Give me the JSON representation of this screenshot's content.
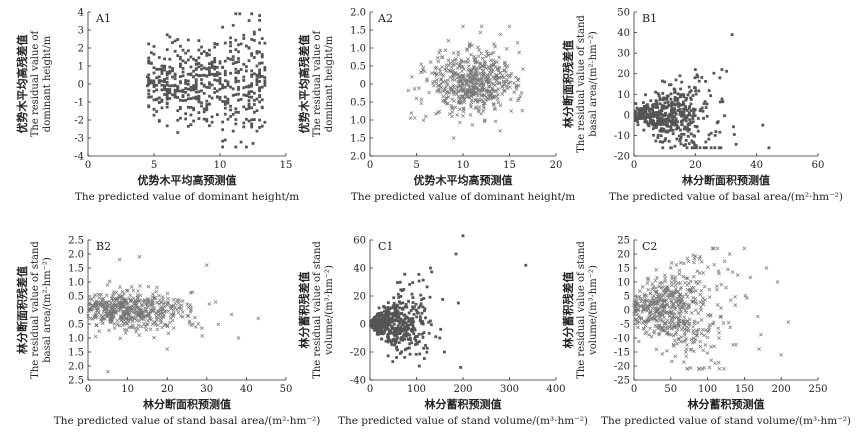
{
  "chart_data": [
    {
      "id": "A1",
      "type": "scatter",
      "panel_label": "A1",
      "marker": "square",
      "xlabel_zh": "优势木平均高预测值",
      "xlabel_en": "The predicted value of dominant height/m",
      "ylabel": [
        "优势木平均高残差值",
        "The residual value of",
        "dominant height/m"
      ],
      "xlim": [
        0,
        15
      ],
      "ylim": [
        -4,
        4
      ],
      "xticks": [
        0,
        5,
        10,
        15
      ],
      "yticks": [
        -4,
        -3,
        -2,
        -1,
        0,
        1,
        2,
        3,
        4
      ],
      "cloud": {
        "n": 520,
        "x_range": [
          4.5,
          13.5
        ],
        "x_columns": true,
        "y_sd": 0.9,
        "y_sd_growth": 0.08,
        "ref_x": 4.5,
        "y_clip": [
          -3.5,
          3.9
        ],
        "seed": 11
      },
      "points": [
        [
          4.5,
          0.4
        ],
        [
          4.5,
          -0.1
        ],
        [
          4.6,
          0.2
        ],
        [
          6,
          0.5
        ],
        [
          6,
          -0.3
        ],
        [
          6,
          0.1
        ],
        [
          7,
          2.1
        ],
        [
          7,
          -1.9
        ],
        [
          13,
          3.8
        ],
        [
          12,
          -3.5
        ],
        [
          11.5,
          3.9
        ],
        [
          12.5,
          -3.3
        ]
      ]
    },
    {
      "id": "A2",
      "type": "scatter",
      "panel_label": "A2",
      "marker": "cross",
      "xlabel_zh": "优势木平均高预测值",
      "xlabel_en": "The predicted value of dominant height/m",
      "ylabel": [
        "优势木平均高残差值",
        "The residual value of",
        "dominant height/m"
      ],
      "xlim": [
        0,
        20
      ],
      "ylim": [
        -2.0,
        2.0
      ],
      "xticks": [
        0,
        5,
        10,
        15,
        20
      ],
      "yticks": [
        -2.0,
        -1.5,
        -1.0,
        -0.5,
        0,
        0.5,
        1.0,
        1.5,
        2.0
      ],
      "ytick_labels": [
        "2.0",
        "1.5",
        "1.0",
        "0.5",
        "0",
        "0.5",
        "1.0",
        "1.5",
        "2.0"
      ],
      "cloud": {
        "n": 560,
        "x_mean": 11,
        "x_sd": 2.4,
        "x_range": [
          4.0,
          16.5
        ],
        "y_sd": 0.42,
        "y_sd_growth": 0.0,
        "ref_x": 0,
        "y_clip": [
          -1.6,
          1.65
        ],
        "seed": 23
      },
      "points": [
        [
          4.5,
          0.2
        ],
        [
          5,
          -0.4
        ],
        [
          6,
          -0.9
        ],
        [
          15,
          1.6
        ],
        [
          14,
          -1.3
        ],
        [
          10,
          1.6
        ],
        [
          12,
          1.6
        ],
        [
          9,
          -1.5
        ]
      ]
    },
    {
      "id": "B1",
      "type": "scatter",
      "panel_label": "B1",
      "marker": "square",
      "xlabel_zh": "林分断面积预测值",
      "xlabel_en": "The predicted value of basal area/(m²·hm⁻²)",
      "ylabel": [
        "林分断面积残差值",
        "The residual value of stand",
        "basal area/(m²·hm⁻²)"
      ],
      "xlim": [
        0,
        60
      ],
      "ylim": [
        -20,
        50
      ],
      "xticks": [
        0,
        20,
        40,
        60
      ],
      "yticks": [
        -20,
        -10,
        0,
        10,
        20,
        30,
        40,
        50
      ],
      "cloud": {
        "n": 480,
        "x_mean": 10,
        "x_sd": 8,
        "x_range": [
          0.3,
          45
        ],
        "y_sd": 1.5,
        "y_sd_growth": 0.45,
        "ref_x": 0,
        "y_clip": [
          -16,
          22
        ],
        "seed": 37
      },
      "points": [
        [
          32,
          39
        ],
        [
          20,
          22
        ],
        [
          28,
          18
        ],
        [
          42,
          -5
        ],
        [
          44,
          -16
        ],
        [
          18,
          -14
        ],
        [
          10,
          16
        ],
        [
          15,
          19
        ]
      ]
    },
    {
      "id": "B2",
      "type": "scatter",
      "panel_label": "B2",
      "marker": "cross",
      "xlabel_zh": "林分断面积预测值",
      "xlabel_en": "The predicted value of stand basal area/(m²·hm⁻²)",
      "ylabel": [
        "林分断面积残差值",
        "The residual value of stand",
        "basal area/(m²·hm⁻²)"
      ],
      "xlim": [
        0,
        50
      ],
      "ylim": [
        -2.5,
        2.5
      ],
      "xticks": [
        0,
        10,
        20,
        30,
        40,
        50
      ],
      "yticks": [
        -2.5,
        -2.0,
        -1.5,
        -1.0,
        -0.5,
        0,
        0.5,
        1.0,
        1.5,
        2.0,
        2.5
      ],
      "ytick_labels": [
        "2.5",
        "2.0",
        "1.5",
        "1.0",
        "0.5",
        "0",
        "0.5",
        "1.0",
        "1.5",
        "2.0",
        "2.5"
      ],
      "cloud": {
        "n": 520,
        "x_mean": 10,
        "x_sd": 8,
        "x_range": [
          0,
          44
        ],
        "y_sd": 0.35,
        "y_sd_growth": 0.0,
        "ref_x": 0,
        "y_clip": [
          -2.1,
          1.95
        ],
        "seed": 41
      },
      "points": [
        [
          5,
          -2.2
        ],
        [
          13,
          1.9
        ],
        [
          30,
          1.6
        ],
        [
          38,
          -1.0
        ],
        [
          43,
          -0.3
        ],
        [
          20,
          -1.4
        ],
        [
          8,
          1.8
        ],
        [
          26,
          0.0
        ]
      ]
    },
    {
      "id": "C1",
      "type": "scatter",
      "panel_label": "C1",
      "marker": "square",
      "xlabel_zh": "林分蓄积预测值",
      "xlabel_en": "The predicted value of stand volume/(m³·hm⁻²)",
      "ylabel": [
        "林分蓄积残差值",
        "The residual value of stand",
        "volume/(m³·hm⁻²)"
      ],
      "xlim": [
        0,
        400
      ],
      "ylim": [
        -40,
        60
      ],
      "xticks": [
        0,
        100,
        200,
        300,
        400
      ],
      "yticks": [
        -40,
        -20,
        0,
        20,
        40,
        60
      ],
      "cloud": {
        "n": 470,
        "x_mean": 45,
        "x_sd": 40,
        "x_range": [
          1,
          200
        ],
        "y_sd": 2,
        "y_sd_growth": 0.12,
        "ref_x": 0,
        "y_clip": [
          -30,
          45
        ],
        "seed": 53
      },
      "points": [
        [
          335,
          42
        ],
        [
          200,
          63
        ],
        [
          195,
          -31
        ],
        [
          160,
          -20
        ],
        [
          185,
          50
        ],
        [
          130,
          40
        ],
        [
          150,
          -10
        ],
        [
          190,
          15
        ]
      ]
    },
    {
      "id": "C2",
      "type": "scatter",
      "panel_label": "C2",
      "marker": "cross",
      "xlabel_zh": "林分蓄积预测值",
      "xlabel_en": "The predicted value of stand volume/(m³·hm⁻²)",
      "ylabel": [
        "林分蓄积残差值",
        "The residual value of stand",
        "volume/(m³·hm⁻²)"
      ],
      "xlim": [
        0,
        250
      ],
      "ylim": [
        -25,
        25
      ],
      "xticks": [
        0,
        50,
        100,
        150,
        200,
        250
      ],
      "yticks": [
        -25,
        -20,
        -15,
        -10,
        -5,
        0,
        5,
        10,
        15,
        20,
        25
      ],
      "cloud": {
        "n": 560,
        "x_mean": 45,
        "x_sd": 40,
        "x_range": [
          0,
          210
        ],
        "y_sd": 2.5,
        "y_sd_growth": 0.09,
        "ref_x": 0,
        "y_clip": [
          -21,
          22
        ],
        "seed": 67
      },
      "points": [
        [
          180,
          15
        ],
        [
          200,
          -16
        ],
        [
          195,
          10
        ],
        [
          170,
          -14
        ],
        [
          130,
          20
        ],
        [
          110,
          -19
        ],
        [
          90,
          19
        ],
        [
          150,
          22
        ]
      ]
    }
  ]
}
